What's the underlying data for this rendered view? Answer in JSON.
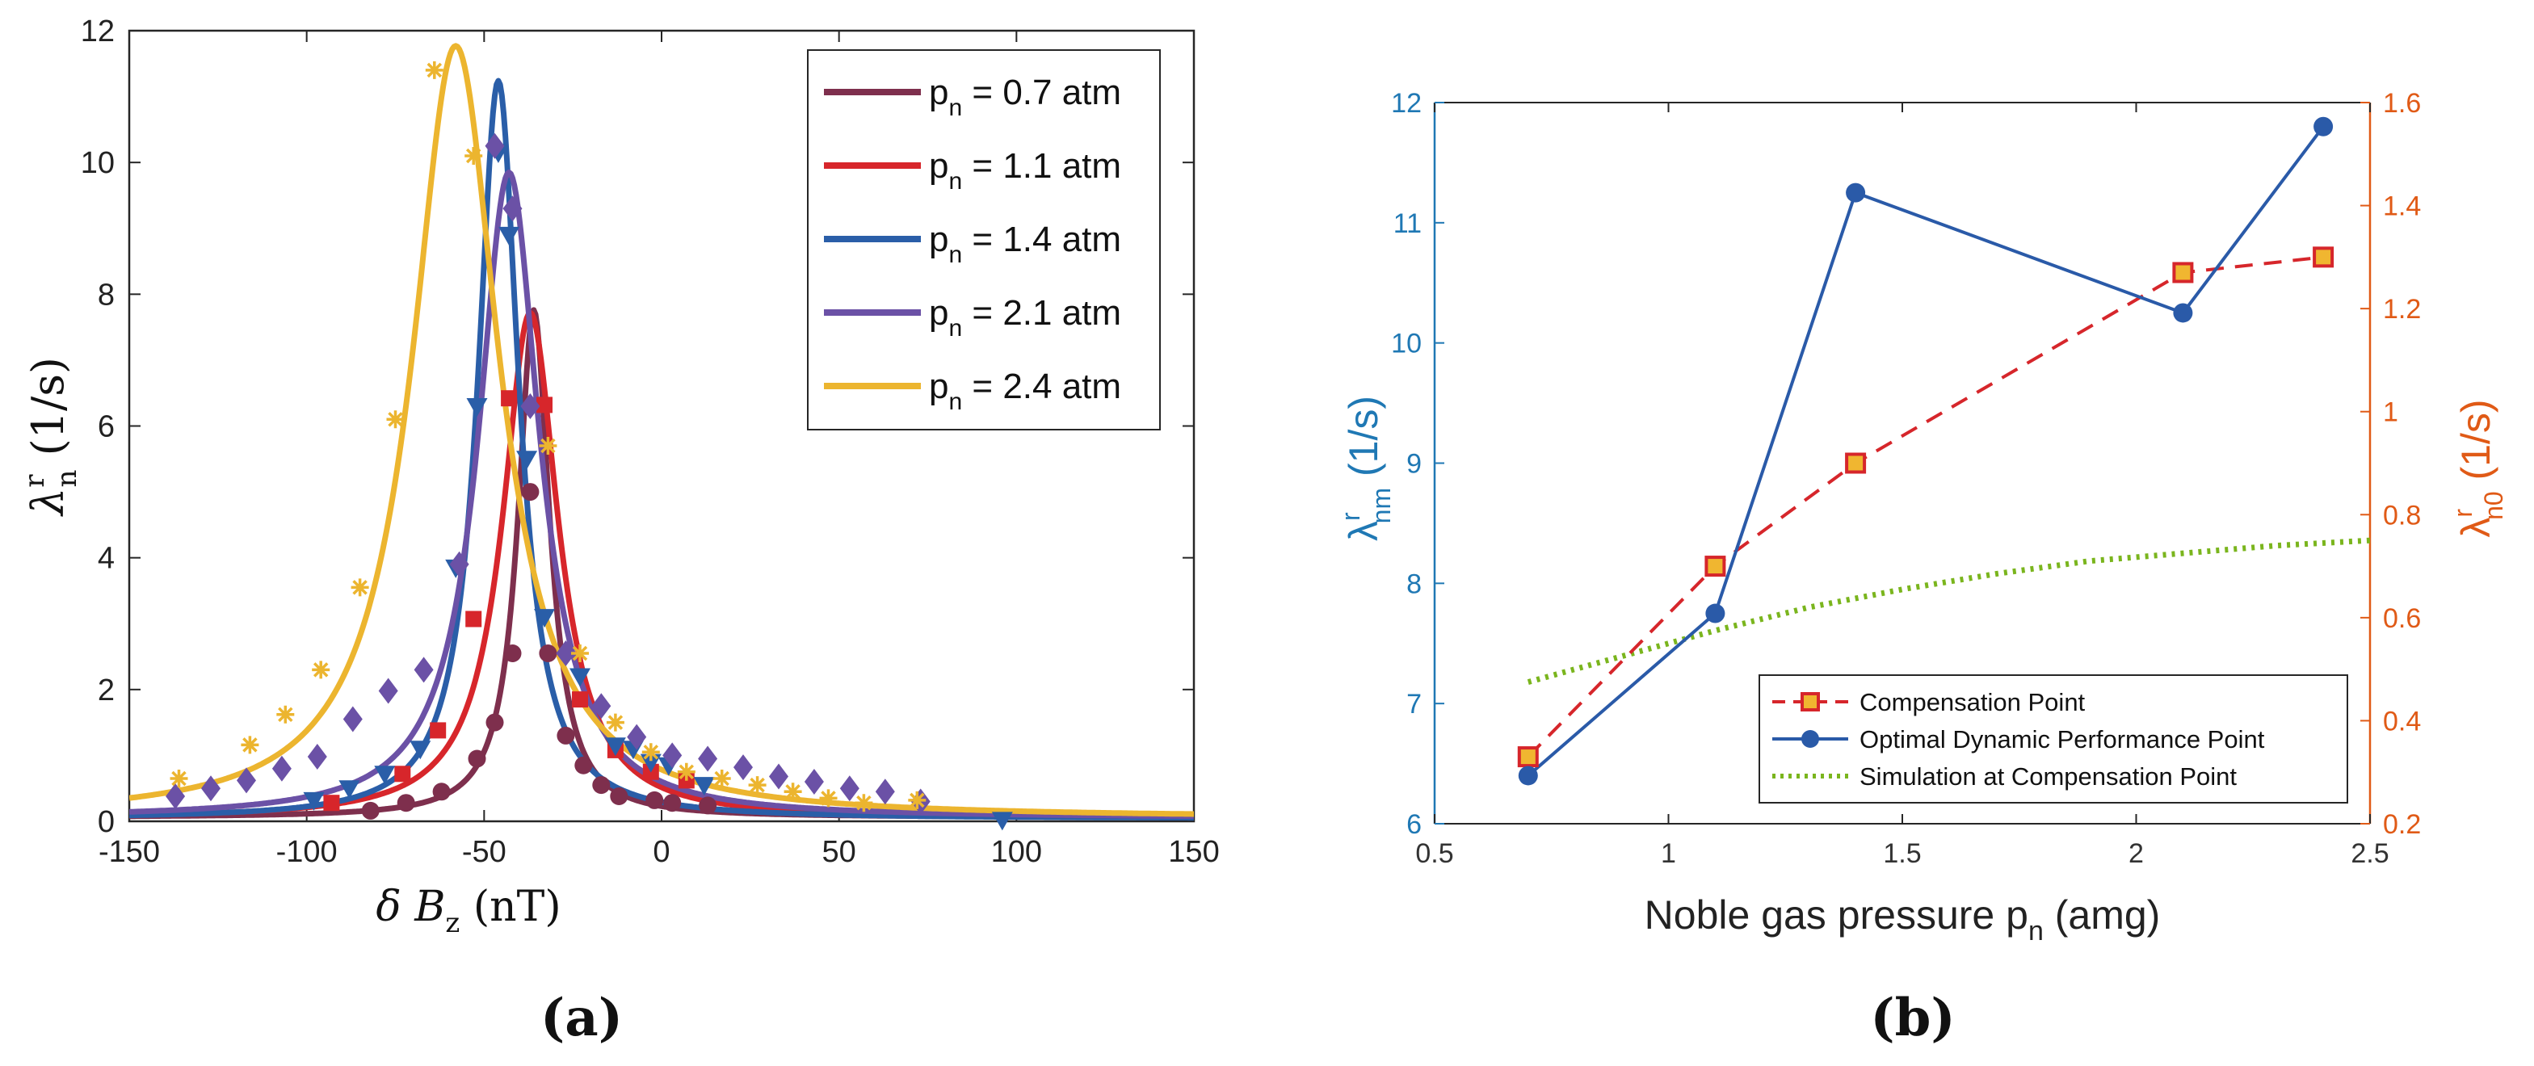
{
  "colors": {
    "c07": "#7e2f4d",
    "c11": "#d7262b",
    "c14": "#2a5ea8",
    "c21": "#6b51a6",
    "c24": "#ecb52f",
    "blueAxis": "#1f78b4",
    "orangeAxis": "#e05a16",
    "comp": "#d6262b",
    "compFill": "#f0b630",
    "opt": "#2a5aa8",
    "sim": "#7ab51d",
    "tick": "#333333"
  },
  "chart_data": [
    {
      "id": "a",
      "type": "line",
      "panel_label": "(a)",
      "title": "",
      "xlim": [
        -150,
        150
      ],
      "ylim": [
        0,
        12
      ],
      "xticks": [
        -150,
        -100,
        -50,
        0,
        50,
        100,
        150
      ],
      "yticks": [
        0,
        2,
        4,
        6,
        8,
        10,
        12
      ],
      "xticklabels": [
        "-150",
        "-100",
        "-50",
        "0",
        "50",
        "100",
        "150"
      ],
      "yticklabels": [
        "0",
        "2",
        "4",
        "6",
        "8",
        "10",
        "12"
      ],
      "xlabel": {
        "main": "δ B",
        "sub": "z",
        "unit": " (nT)"
      },
      "ylabel": {
        "main": "λ",
        "sup": "r",
        "sub": "n",
        "unit": " (1/s)"
      },
      "legend": {
        "position": "top-right",
        "label_prefix": "p",
        "label_sub": "n"
      },
      "series": [
        {
          "name": "p_n = 0.7 atm",
          "legend_text": " = 0.7 atm",
          "color_key": "c07",
          "marker": "circle",
          "fit": {
            "amp": 7.7,
            "center": -36,
            "hwhm": 5.4,
            "offset": 0.06
          },
          "points": [
            [
              -82,
              0.16
            ],
            [
              -72,
              0.28
            ],
            [
              -62,
              0.45
            ],
            [
              -52,
              0.95
            ],
            [
              -47,
              1.5
            ],
            [
              -42,
              2.55
            ],
            [
              -37,
              5.0
            ],
            [
              -32,
              2.55
            ],
            [
              -27,
              1.3
            ],
            [
              -22,
              0.85
            ],
            [
              -17,
              0.55
            ],
            [
              -12,
              0.38
            ],
            [
              -2,
              0.32
            ],
            [
              3,
              0.28
            ],
            [
              13,
              0.24
            ]
          ]
        },
        {
          "name": "p_n = 1.1 atm",
          "legend_text": " = 1.1 atm",
          "color_key": "c11",
          "marker": "square",
          "fit": {
            "amp": 7.68,
            "center": -37,
            "hwhm": 9.5,
            "offset": 0.04
          },
          "points": [
            [
              -93,
              0.28
            ],
            [
              -73,
              0.72
            ],
            [
              -63,
              1.38
            ],
            [
              -53,
              3.07
            ],
            [
              -43,
              6.42
            ],
            [
              -33,
              6.32
            ],
            [
              -23,
              1.85
            ],
            [
              -13,
              1.08
            ],
            [
              -3,
              0.75
            ],
            [
              7,
              0.62
            ]
          ]
        },
        {
          "name": "p_n = 1.4 atm",
          "legend_text": " = 1.4 atm",
          "color_key": "c14",
          "marker": "triangle-down",
          "fit": {
            "amp": 11.2,
            "center": -46,
            "hwhm": 7.0,
            "offset": 0.04
          },
          "points": [
            [
              -98,
              0.32
            ],
            [
              -88,
              0.5
            ],
            [
              -78,
              0.72
            ],
            [
              -68,
              1.1
            ],
            [
              -58,
              3.85
            ],
            [
              -52,
              6.3
            ],
            [
              -46,
              10.15
            ],
            [
              -43,
              8.9
            ],
            [
              -38,
              5.5
            ],
            [
              -33,
              3.1
            ],
            [
              -23,
              2.2
            ],
            [
              -13,
              1.15
            ],
            [
              -3,
              0.9
            ],
            [
              -8,
              1.1
            ],
            [
              2,
              0.85
            ],
            [
              12,
              0.55
            ],
            [
              96,
              0.02
            ]
          ]
        },
        {
          "name": "p_n = 2.1 atm",
          "legend_text": " = 2.1 atm",
          "color_key": "c21",
          "marker": "diamond",
          "fit": {
            "amp": 9.8,
            "center": -43,
            "hwhm": 10.5,
            "offset": 0.05
          },
          "points": [
            [
              -137,
              0.38
            ],
            [
              -127,
              0.5
            ],
            [
              -117,
              0.62
            ],
            [
              -107,
              0.8
            ],
            [
              -97,
              0.98
            ],
            [
              -87,
              1.55
            ],
            [
              -77,
              1.98
            ],
            [
              -67,
              2.3
            ],
            [
              -57,
              3.9
            ],
            [
              -47,
              10.25
            ],
            [
              -42,
              9.3
            ],
            [
              -37,
              6.3
            ],
            [
              -27,
              2.55
            ],
            [
              -17,
              1.75
            ],
            [
              -7,
              1.28
            ],
            [
              3,
              1.0
            ],
            [
              13,
              0.95
            ],
            [
              23,
              0.82
            ],
            [
              33,
              0.68
            ],
            [
              43,
              0.6
            ],
            [
              53,
              0.5
            ],
            [
              63,
              0.45
            ],
            [
              73,
              0.3
            ]
          ]
        },
        {
          "name": "p_n = 2.4 atm",
          "legend_text": " = 2.4 atm",
          "color_key": "c24",
          "marker": "asterisk",
          "fit": {
            "amp": 11.72,
            "center": -58,
            "hwhm": 15.0,
            "offset": 0.05
          },
          "points": [
            [
              -136,
              0.65
            ],
            [
              -116,
              1.16
            ],
            [
              -106,
              1.62
            ],
            [
              -96,
              2.3
            ],
            [
              -85,
              3.55
            ],
            [
              -75,
              6.1
            ],
            [
              -64,
              11.4
            ],
            [
              -53,
              10.1
            ],
            [
              -32,
              5.7
            ],
            [
              -23,
              2.55
            ],
            [
              -13,
              1.5
            ],
            [
              -3,
              1.05
            ],
            [
              7,
              0.75
            ],
            [
              17,
              0.65
            ],
            [
              27,
              0.55
            ],
            [
              37,
              0.45
            ],
            [
              47,
              0.35
            ],
            [
              57,
              0.28
            ],
            [
              72,
              0.32
            ]
          ]
        }
      ]
    },
    {
      "id": "b",
      "type": "line",
      "panel_label": "(b)",
      "title": "",
      "xlim": [
        0.5,
        2.5
      ],
      "ylim_left": [
        6,
        12
      ],
      "ylim_right": [
        0.2,
        1.6
      ],
      "xticks": [
        0.5,
        1,
        1.5,
        2,
        2.5
      ],
      "xticklabels": [
        "0.5",
        "1",
        "1.5",
        "2",
        "2.5"
      ],
      "yticks_left": [
        6,
        7,
        8,
        9,
        10,
        11,
        12
      ],
      "yticklabels_left": [
        "6",
        "7",
        "8",
        "9",
        "10",
        "11",
        "12"
      ],
      "yticks_right": [
        0.2,
        0.4,
        0.6,
        0.8,
        1.0,
        1.2,
        1.4,
        1.6
      ],
      "yticklabels_right": [
        "0.2",
        "0.4",
        "0.6",
        "0.8",
        "1",
        "1.2",
        "1.4",
        "1.6"
      ],
      "xlabel": {
        "main": "Noble gas pressure p",
        "sub": "n",
        "unit": " (amg)"
      },
      "ylabel_left": {
        "main": "λ",
        "sup": "r",
        "sub": "nm",
        "unit": " (1/s)"
      },
      "ylabel_right": {
        "main": "λ",
        "sup": "r",
        "sub": "n0",
        "unit": " (1/s)"
      },
      "legend": {
        "position": "bottom-right"
      },
      "series": [
        {
          "name": "Compensation Point",
          "axis": "right",
          "style": "dashed",
          "marker": "square",
          "x": [
            0.7,
            1.1,
            1.4,
            2.1,
            2.4
          ],
          "y": [
            0.33,
            0.7,
            0.9,
            1.27,
            1.3
          ]
        },
        {
          "name": "Optimal Dynamic Performance Point",
          "axis": "left",
          "style": "solid",
          "marker": "circle",
          "x": [
            0.7,
            1.1,
            1.4,
            2.1,
            2.4
          ],
          "y": [
            6.4,
            7.75,
            11.25,
            10.25,
            11.8
          ]
        },
        {
          "name": "Simulation at Compensation Point",
          "axis": "right",
          "style": "dotted",
          "marker": "none",
          "x": [
            0.7,
            0.9,
            1.1,
            1.3,
            1.5,
            1.7,
            1.9,
            2.1,
            2.3,
            2.5
          ],
          "y": [
            0.475,
            0.525,
            0.575,
            0.62,
            0.655,
            0.685,
            0.71,
            0.725,
            0.74,
            0.75
          ]
        }
      ]
    }
  ]
}
